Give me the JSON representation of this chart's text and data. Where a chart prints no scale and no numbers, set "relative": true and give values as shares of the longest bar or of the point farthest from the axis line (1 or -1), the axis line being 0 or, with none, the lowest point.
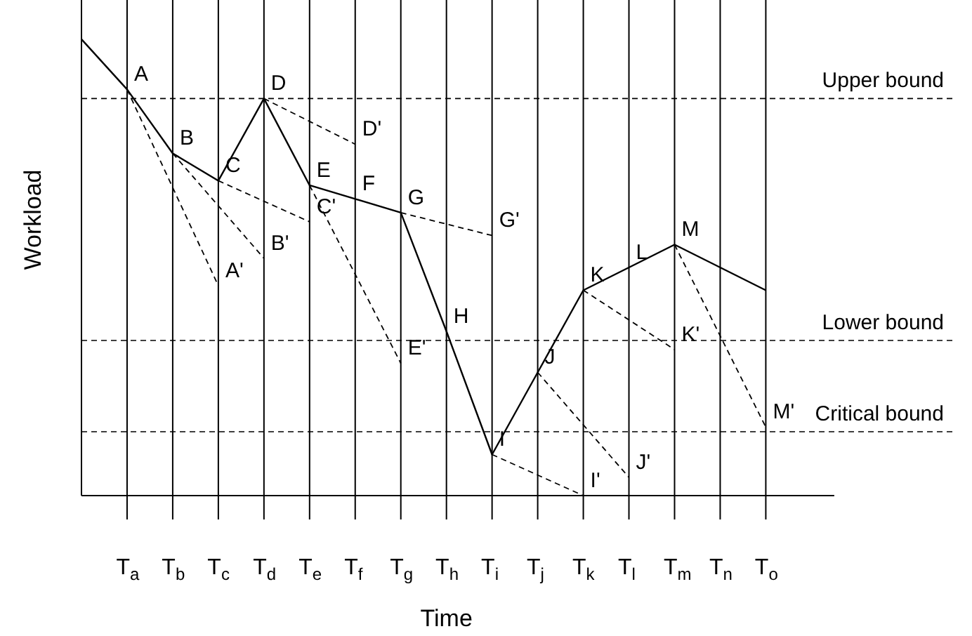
{
  "chart_data": {
    "type": "line",
    "relative": true,
    "xlabel": "Time",
    "ylabel": "Workload",
    "grid": "x",
    "marker": "none",
    "categories": [
      null,
      "T$_{a}$",
      "T$_{b}$",
      "T$_{c}$",
      "T$_{d}$",
      "T$_{e}$",
      "T$_{f}$",
      "T$_{g}$",
      "T$_{h}$",
      "T$_{i}$",
      "T$_{j}$",
      "T$_{k}$",
      "T$_{l}$",
      "T$_{m}$",
      "T$_{n}$",
      "T$_{o}$"
    ],
    "series": [
      {
        "color": "#000000",
        "values": [
          1.0,
          0.89,
          0.75,
          0.69,
          0.87,
          0.68,
          0.65,
          0.62,
          0.36,
          0.09,
          0.27,
          0.45,
          0.5,
          0.55,
          0.5,
          0.45
        ]
      },
      {
        "color": "#000000",
        "line_style": "dashed",
        "values": [
          null,
          0.89,
          null,
          0.46,
          null,
          null,
          null,
          null,
          null,
          null,
          null,
          null,
          null,
          null,
          null,
          null
        ]
      },
      {
        "color": "#000000",
        "line_style": "dashed",
        "values": [
          null,
          null,
          0.75,
          null,
          0.52,
          null,
          null,
          null,
          null,
          null,
          null,
          null,
          null,
          null,
          null,
          null
        ]
      },
      {
        "color": "#000000",
        "line_style": "dashed",
        "values": [
          null,
          null,
          null,
          0.69,
          null,
          0.6,
          null,
          null,
          null,
          null,
          null,
          null,
          null,
          null,
          null,
          null
        ]
      },
      {
        "color": "#000000",
        "line_style": "dashed",
        "values": [
          null,
          null,
          null,
          null,
          0.87,
          null,
          0.77,
          null,
          null,
          null,
          null,
          null,
          null,
          null,
          null,
          null
        ]
      },
      {
        "color": "#000000",
        "line_style": "dashed",
        "values": [
          null,
          null,
          null,
          null,
          null,
          0.68,
          null,
          0.29,
          null,
          null,
          null,
          null,
          null,
          null,
          null,
          null
        ]
      },
      {
        "color": "#000000",
        "line_style": "dashed",
        "values": [
          null,
          null,
          null,
          null,
          null,
          null,
          null,
          0.62,
          null,
          0.57,
          null,
          null,
          null,
          null,
          null,
          null
        ]
      },
      {
        "color": "#000000",
        "line_style": "dashed",
        "values": [
          null,
          null,
          null,
          null,
          null,
          null,
          null,
          null,
          null,
          0.09,
          null,
          0.0,
          null,
          null,
          null,
          null
        ]
      },
      {
        "color": "#000000",
        "line_style": "dashed",
        "values": [
          null,
          null,
          null,
          null,
          null,
          null,
          null,
          null,
          null,
          null,
          0.27,
          null,
          0.04,
          null,
          null,
          null
        ]
      },
      {
        "color": "#000000",
        "line_style": "dashed",
        "values": [
          null,
          null,
          null,
          null,
          null,
          null,
          null,
          null,
          null,
          null,
          null,
          0.45,
          null,
          0.32,
          null,
          null
        ]
      },
      {
        "color": "#000000",
        "line_style": "dashed",
        "values": [
          null,
          null,
          null,
          null,
          null,
          null,
          null,
          null,
          null,
          null,
          null,
          null,
          null,
          0.55,
          null,
          0.15
        ]
      }
    ],
    "ref_lines": [
      {
        "axis": "y",
        "value": 0.87,
        "label": "Upper bound",
        "line_style": "dashed"
      },
      {
        "axis": "y",
        "value": 0.34,
        "label": "Lower bound",
        "line_style": "dashed"
      },
      {
        "axis": "y",
        "value": 0.14,
        "label": "Critical bound",
        "line_style": "dashed"
      }
    ],
    "annotations": [
      {
        "text": "A",
        "x": "T$_{a}$",
        "y": 0.89
      },
      {
        "text": "B",
        "x": "T$_{b}$",
        "y": 0.75
      },
      {
        "text": "C",
        "x": "T$_{c}$",
        "y": 0.69
      },
      {
        "text": "D",
        "x": "T$_{d}$",
        "y": 0.87
      },
      {
        "text": "E",
        "x": "T$_{e}$",
        "y": 0.68
      },
      {
        "text": "F",
        "x": "T$_{f}$",
        "y": 0.65
      },
      {
        "text": "G",
        "x": "T$_{g}$",
        "y": 0.62
      },
      {
        "text": "H",
        "x": "T$_{h}$",
        "y": 0.36
      },
      {
        "text": "I",
        "x": "T$_{i}$",
        "y": 0.09
      },
      {
        "text": "J",
        "x": "T$_{j}$",
        "y": 0.27
      },
      {
        "text": "K",
        "x": "T$_{k}$",
        "y": 0.45
      },
      {
        "text": "L",
        "x": "T$_{l}$",
        "y": 0.5
      },
      {
        "text": "M",
        "x": "T$_{m}$",
        "y": 0.55
      },
      {
        "text": "A'",
        "x": "T$_{c}$",
        "y": 0.46
      },
      {
        "text": "B'",
        "x": "T$_{d}$",
        "y": 0.52
      },
      {
        "text": "C'",
        "x": "T$_{e}$",
        "y": 0.6
      },
      {
        "text": "D'",
        "x": "T$_{f}$",
        "y": 0.77
      },
      {
        "text": "E'",
        "x": "T$_{g}$",
        "y": 0.29
      },
      {
        "text": "G'",
        "x": "T$_{i}$",
        "y": 0.57
      },
      {
        "text": "I'",
        "x": "T$_{k}$",
        "y": 0.0
      },
      {
        "text": "J'",
        "x": "T$_{l}$",
        "y": 0.04
      },
      {
        "text": "K'",
        "x": "T$_{m}$",
        "y": 0.32
      },
      {
        "text": "M'",
        "x": "T$_{o}$",
        "y": 0.15
      }
    ]
  }
}
